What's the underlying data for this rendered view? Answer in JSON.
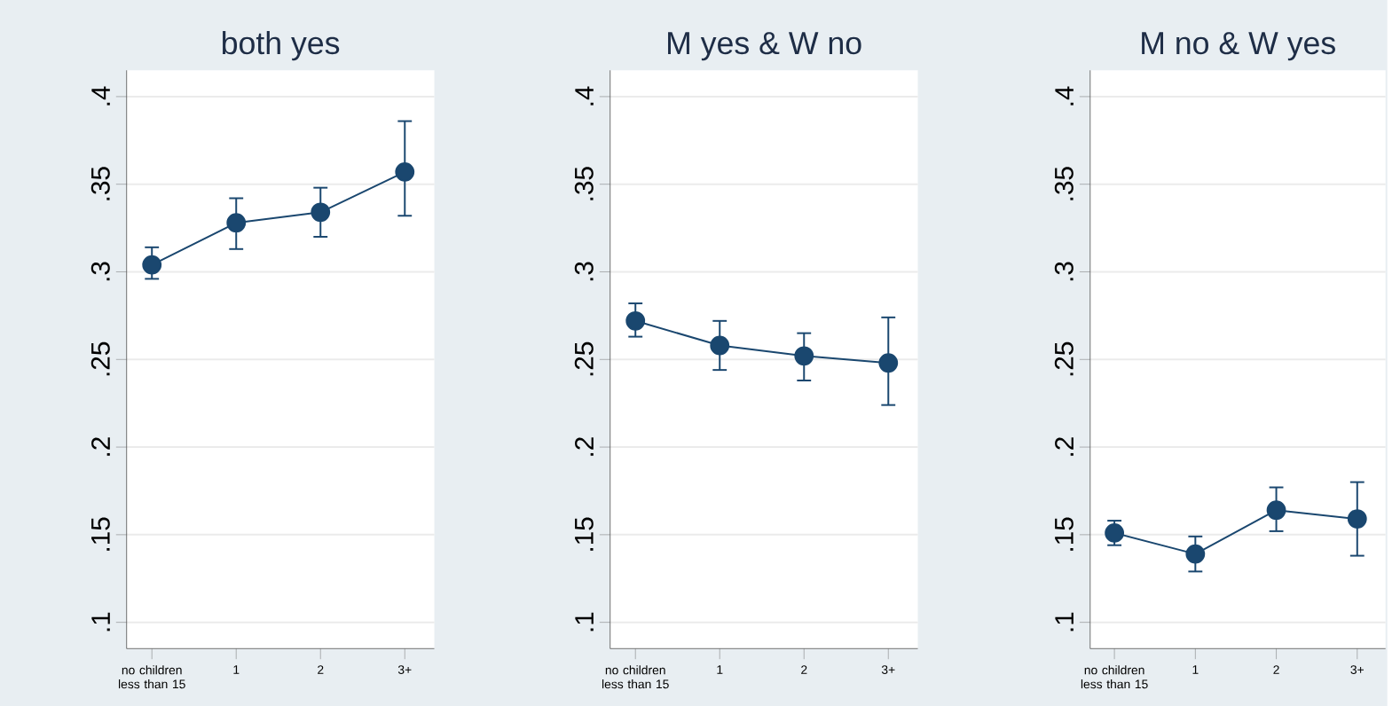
{
  "chart_data": [
    {
      "type": "line",
      "title": "both yes",
      "categories": [
        "no children less than 15",
        "1",
        "2",
        "3+"
      ],
      "series": [
        {
          "color": "#1a476f",
          "values": [
            0.304,
            0.328,
            0.334,
            0.357
          ],
          "errors": [
            [
              0.296,
              0.314
            ],
            [
              0.313,
              0.342
            ],
            [
              0.32,
              0.348
            ],
            [
              0.332,
              0.386
            ]
          ]
        }
      ],
      "ylim": [
        0.085,
        0.415
      ],
      "yticks": [
        {
          "value": 0.1,
          "label": ".1"
        },
        {
          "value": 0.15,
          "label": ".15"
        },
        {
          "value": 0.2,
          "label": ".2"
        },
        {
          "value": 0.25,
          "label": ".25"
        },
        {
          "value": 0.3,
          "label": ".3"
        },
        {
          "value": 0.35,
          "label": ".35"
        },
        {
          "value": 0.4,
          "label": ".4"
        }
      ],
      "grid": "y",
      "marker": "circle",
      "line_style": "solid",
      "legend": false
    },
    {
      "type": "line",
      "title": "M yes & W no",
      "categories": [
        "no children less than 15",
        "1",
        "2",
        "3+"
      ],
      "series": [
        {
          "color": "#1a476f",
          "values": [
            0.272,
            0.258,
            0.252,
            0.248
          ],
          "errors": [
            [
              0.263,
              0.282
            ],
            [
              0.244,
              0.272
            ],
            [
              0.238,
              0.265
            ],
            [
              0.224,
              0.274
            ]
          ]
        }
      ],
      "ylim": [
        0.085,
        0.415
      ],
      "yticks": [
        {
          "value": 0.1,
          "label": ".1"
        },
        {
          "value": 0.15,
          "label": ".15"
        },
        {
          "value": 0.2,
          "label": ".2"
        },
        {
          "value": 0.25,
          "label": ".25"
        },
        {
          "value": 0.3,
          "label": ".3"
        },
        {
          "value": 0.35,
          "label": ".35"
        },
        {
          "value": 0.4,
          "label": ".4"
        }
      ],
      "grid": "y",
      "marker": "circle",
      "line_style": "solid",
      "legend": false
    },
    {
      "type": "line",
      "title": "M no & W yes",
      "categories": [
        "no children less than 15",
        "1",
        "2",
        "3+"
      ],
      "series": [
        {
          "color": "#1a476f",
          "values": [
            0.151,
            0.139,
            0.164,
            0.159
          ],
          "errors": [
            [
              0.144,
              0.158
            ],
            [
              0.129,
              0.149
            ],
            [
              0.152,
              0.177
            ],
            [
              0.138,
              0.18
            ]
          ]
        }
      ],
      "ylim": [
        0.085,
        0.415
      ],
      "yticks": [
        {
          "value": 0.1,
          "label": ".1"
        },
        {
          "value": 0.15,
          "label": ".15"
        },
        {
          "value": 0.2,
          "label": ".2"
        },
        {
          "value": 0.25,
          "label": ".25"
        },
        {
          "value": 0.3,
          "label": ".3"
        },
        {
          "value": 0.35,
          "label": ".35"
        },
        {
          "value": 0.4,
          "label": ".4"
        }
      ],
      "grid": "y",
      "marker": "circle",
      "line_style": "solid",
      "legend": false
    }
  ]
}
